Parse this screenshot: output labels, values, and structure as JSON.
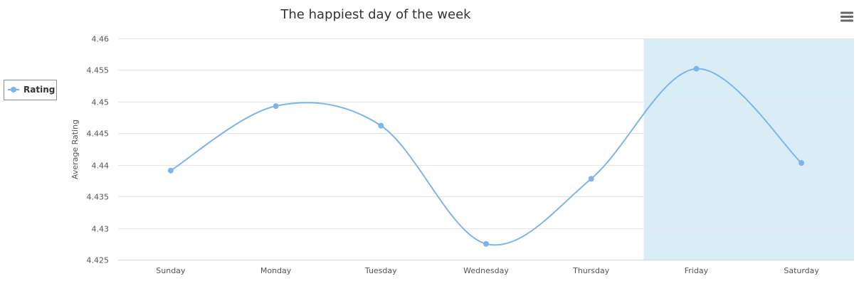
{
  "chart_data": {
    "type": "line",
    "title": "The happiest day of the week",
    "ylabel": "Average Rating",
    "xlabel": "",
    "categories": [
      "Sunday",
      "Monday",
      "Tuesday",
      "Wednesday",
      "Thursday",
      "Friday",
      "Saturday"
    ],
    "series": [
      {
        "name": "Rating",
        "color": "#7cb5ec",
        "values": [
          4.4391,
          4.4493,
          4.4462,
          4.4275,
          4.4378,
          4.4552,
          4.4403
        ]
      }
    ],
    "ylim": [
      4.425,
      4.46
    ],
    "yticks": [
      "4.425",
      "4.43",
      "4.435",
      "4.44",
      "4.445",
      "4.45",
      "4.455",
      "4.46"
    ],
    "highlight_band": {
      "category": "Friday",
      "from": 4.5,
      "to": 6.5,
      "color": "#d9edf7"
    },
    "grid": true,
    "legend_position": "left",
    "curve": "smooth"
  },
  "toolbar": {
    "menu_icon": "hamburger-menu-icon"
  }
}
